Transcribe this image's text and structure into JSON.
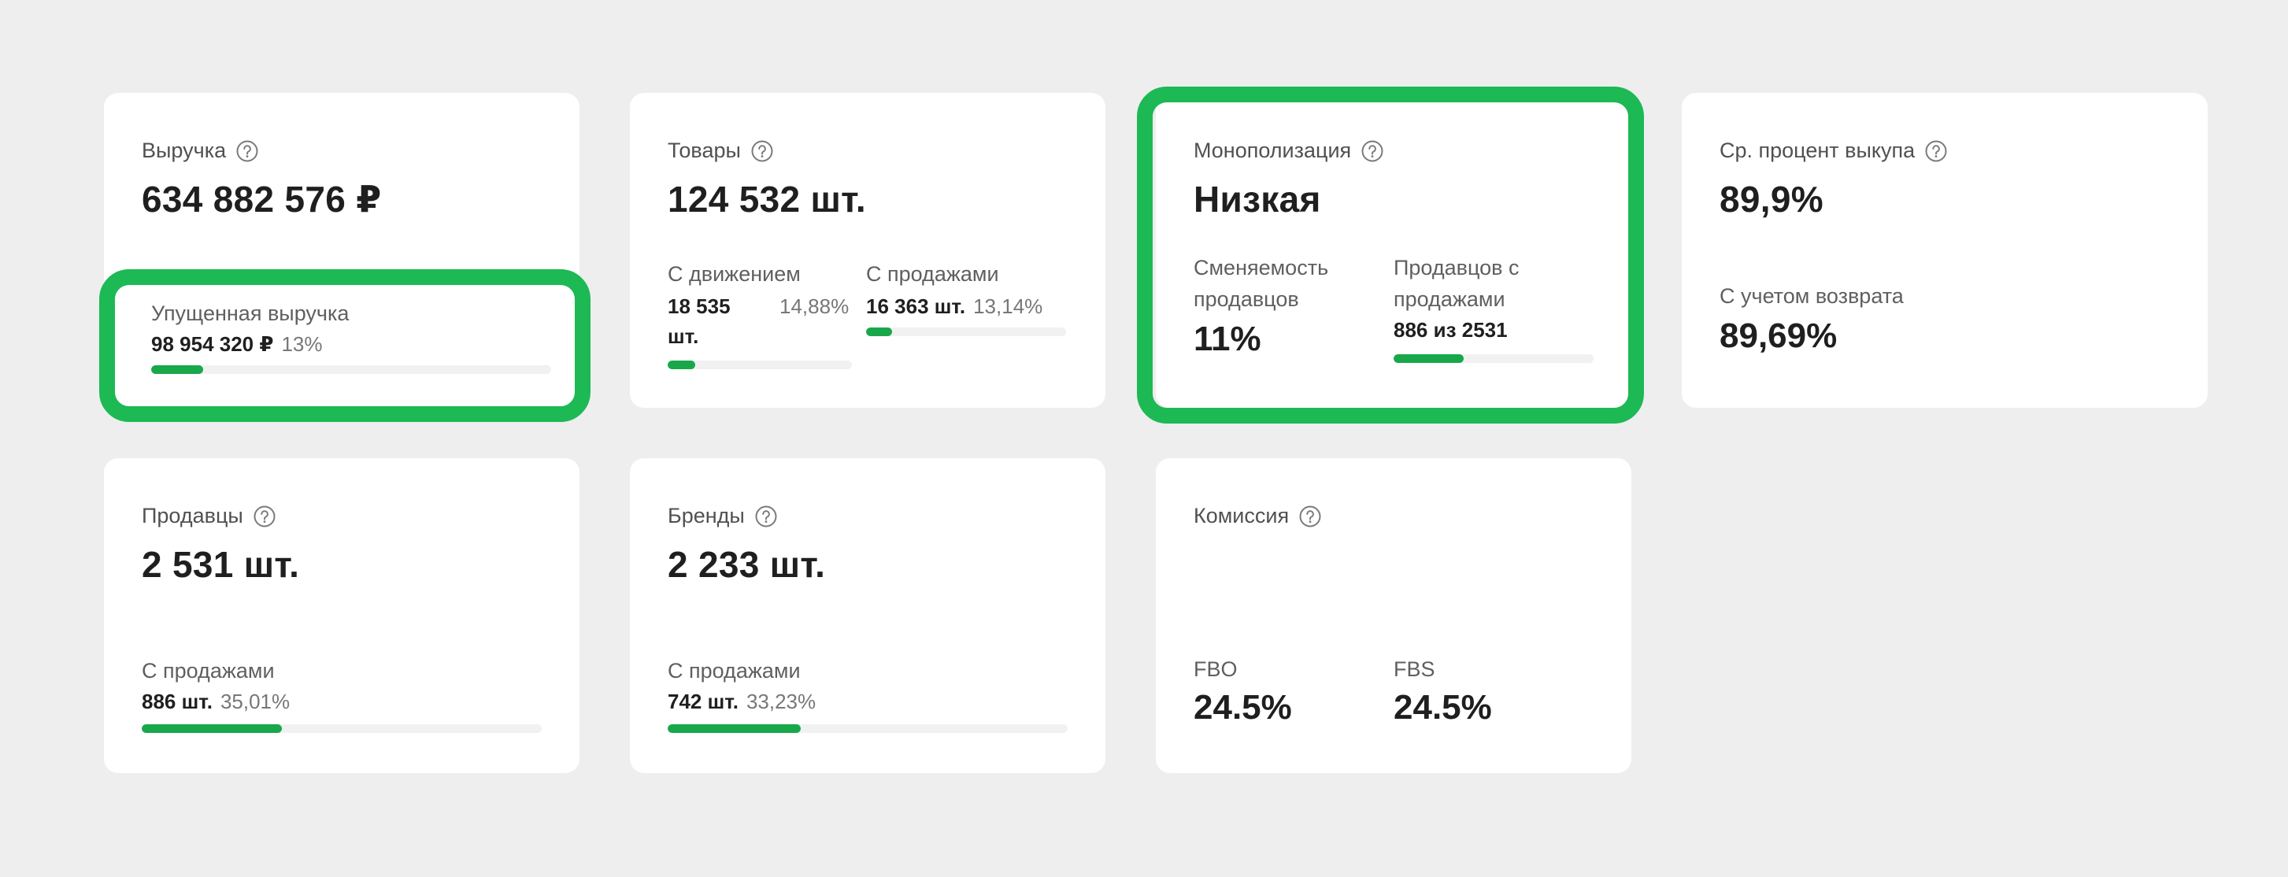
{
  "colors": {
    "accent": "#18a84a",
    "highlight": "#1db954",
    "bg": "#eeeeee",
    "card": "#ffffff"
  },
  "revenue": {
    "title": "Выручка",
    "value": "634 882 576 ₽",
    "lost_label": "Упущенная выручка",
    "lost_value": "98 954 320 ₽",
    "lost_pct": "13%",
    "lost_progress": 0.13
  },
  "goods": {
    "title": "Товары",
    "value": "124 532 шт.",
    "movement_label": "С движением",
    "movement_value_1": "18 535",
    "movement_value_2": "шт.",
    "movement_pct": "14,88%",
    "movement_progress": 0.1488,
    "sales_label": "С продажами",
    "sales_value": "16 363 шт.",
    "sales_pct": "13,14%",
    "sales_progress": 0.1314
  },
  "monopoly": {
    "title": "Монополизация",
    "value": "Низкая",
    "turnover_label_1": "Сменяемость",
    "turnover_label_2": "продавцов",
    "turnover_value": "11%",
    "sellers_label_1": "Продавцов с",
    "sellers_label_2": "продажами",
    "sellers_value": "886 из 2531",
    "sellers_progress": 0.35
  },
  "buyout": {
    "title": "Ср. процент выкупа",
    "value": "89,9%",
    "returns_label": "С учетом возврата",
    "returns_value": "89,69%"
  },
  "sellers": {
    "title": "Продавцы",
    "value": "2 531 шт.",
    "sales_label": "С продажами",
    "sales_value": "886 шт.",
    "sales_pct": "35,01%",
    "sales_progress": 0.3501
  },
  "brands": {
    "title": "Бренды",
    "value": "2 233 шт.",
    "sales_label": "С продажами",
    "sales_value": "742 шт.",
    "sales_pct": "33,23%",
    "sales_progress": 0.3323
  },
  "commission": {
    "title": "Комиссия",
    "fbo_label": "FBO",
    "fbo_value": "24.5%",
    "fbs_label": "FBS",
    "fbs_value": "24.5%"
  }
}
